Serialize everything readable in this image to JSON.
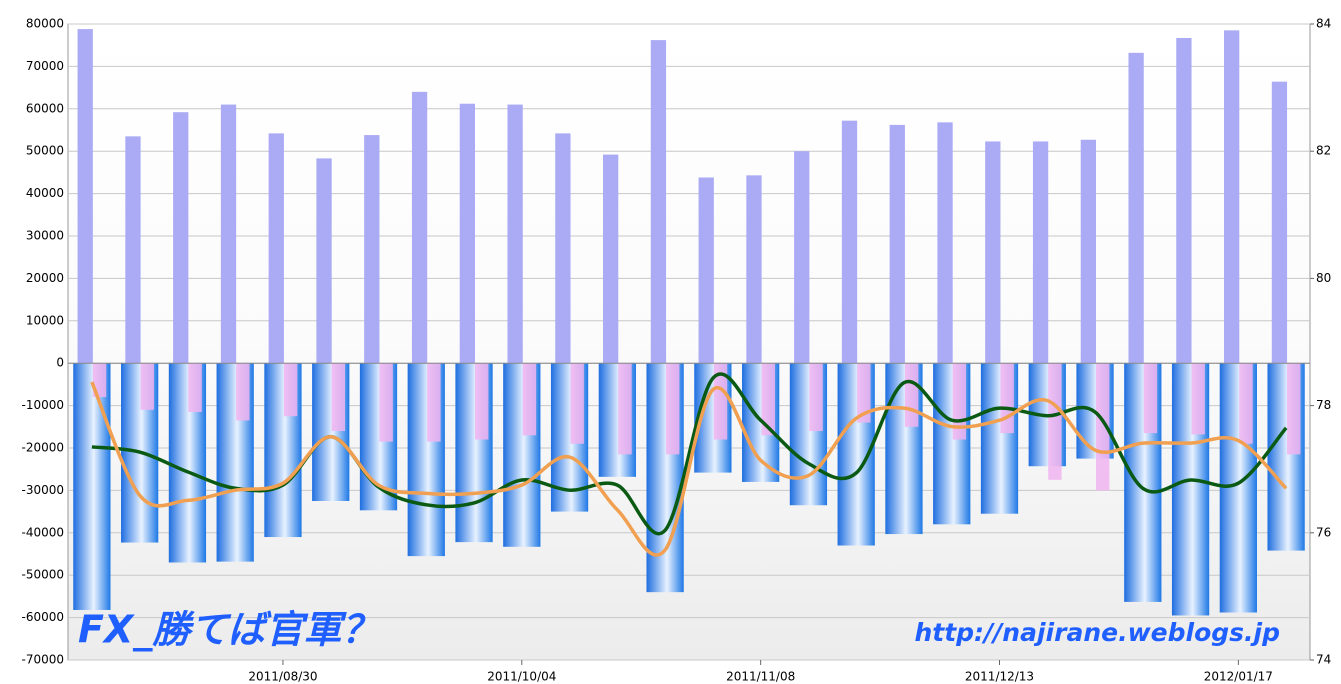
{
  "chart_data": {
    "type": "bar_line",
    "categories": [
      null,
      null,
      null,
      null,
      "2011/08/30",
      null,
      null,
      null,
      null,
      "2011/10/04",
      null,
      null,
      null,
      null,
      "2011/11/08",
      null,
      null,
      null,
      null,
      "2011/12/13",
      null,
      null,
      null,
      null,
      "2012/01/17",
      null
    ],
    "series": [
      {
        "type": "bar",
        "color": "#aaaaf5",
        "values": [
          78800,
          53500,
          59200,
          61000,
          54200,
          48300,
          53800,
          64000,
          61200,
          61000,
          54200,
          49200,
          76200,
          43800,
          44300,
          50000,
          57200,
          56200,
          56800,
          52300,
          52300,
          52700,
          73200,
          76700,
          78500,
          66400
        ]
      },
      {
        "type": "bar",
        "color": "#1e78e6",
        "values": [
          -58200,
          -42300,
          -47000,
          -46800,
          -41000,
          -32500,
          -34700,
          -45500,
          -42200,
          -43300,
          -35000,
          -26800,
          -54000,
          -25800,
          -28000,
          -33500,
          -43000,
          -40300,
          -38000,
          -35500,
          -24300,
          -22500,
          -56300,
          -59500,
          -58800,
          -44200
        ]
      },
      {
        "type": "bar",
        "color": "#f0b4f0",
        "values": [
          -8000,
          -11000,
          -11500,
          -13500,
          -12500,
          -16000,
          -18500,
          -18500,
          -18000,
          -17000,
          -19000,
          -21500,
          -21500,
          -18000,
          -17000,
          -16000,
          -14000,
          -15000,
          -18000,
          -16500,
          -27500,
          -30000,
          -16500,
          -16800,
          -19000,
          -21500
        ]
      },
      {
        "type": "line",
        "axis": "y2",
        "color": "#0a5a14",
        "values": [
          77.35,
          77.27,
          76.96,
          76.7,
          76.75,
          77.51,
          76.72,
          76.44,
          76.47,
          76.83,
          76.67,
          76.75,
          76.04,
          78.43,
          77.77,
          77.09,
          76.94,
          78.36,
          77.77,
          77.96,
          77.84,
          77.9,
          76.7,
          76.83,
          76.78,
          77.65
        ]
      },
      {
        "type": "line",
        "axis": "y2",
        "color": "#f0a050",
        "values": [
          78.37,
          76.59,
          76.51,
          76.67,
          76.78,
          77.51,
          76.75,
          76.62,
          76.62,
          76.75,
          77.19,
          76.36,
          75.73,
          78.25,
          77.14,
          76.9,
          77.8,
          77.96,
          77.67,
          77.77,
          78.08,
          77.3,
          77.41,
          77.41,
          77.45,
          76.7
        ]
      }
    ],
    "ylim": [
      -70000,
      80000
    ],
    "yticks": [
      -70000,
      -60000,
      -50000,
      -40000,
      -30000,
      -20000,
      -10000,
      0,
      10000,
      20000,
      30000,
      40000,
      50000,
      60000,
      70000,
      80000
    ],
    "y2lim": [
      74,
      84
    ],
    "y2ticks": [
      74,
      76,
      78,
      80,
      82,
      84
    ],
    "grid": true,
    "annotations": [
      "FX_勝てば官軍？",
      "http://najirane.weblogs.jp"
    ]
  }
}
